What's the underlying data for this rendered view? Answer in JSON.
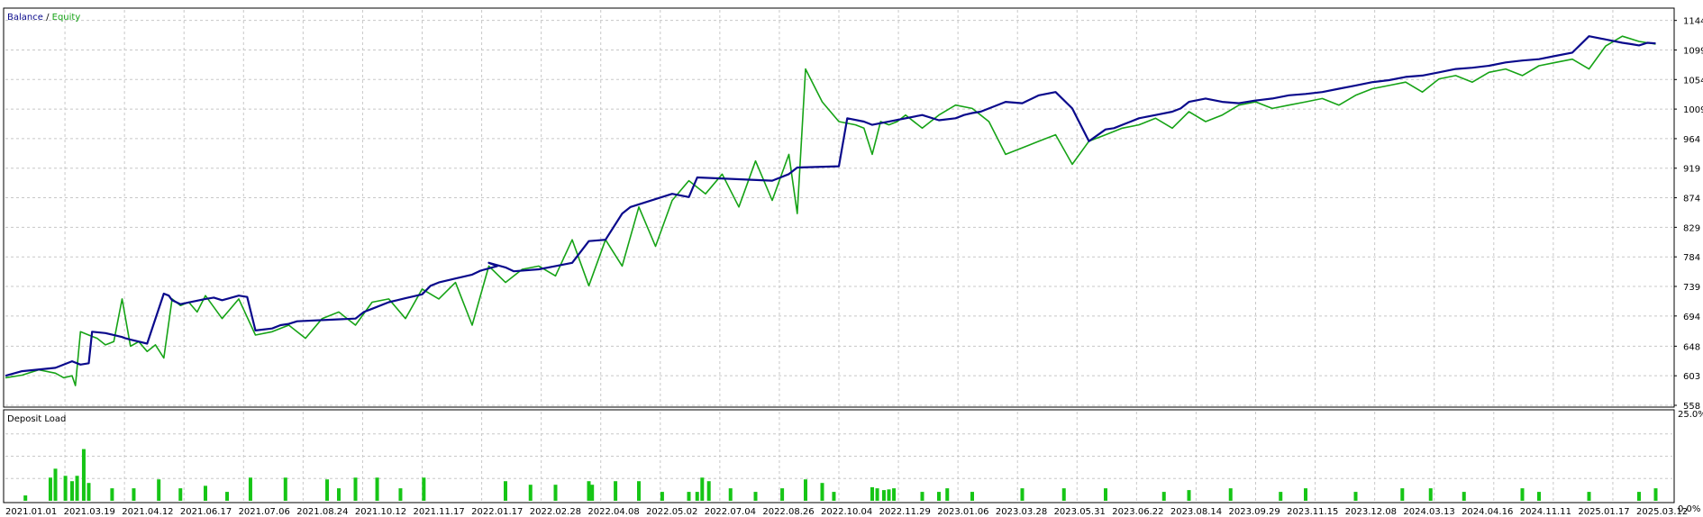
{
  "chart_data": [
    {
      "type": "line",
      "legend": {
        "balance_label": "Balance",
        "separator": " / ",
        "equity_label": "Equity"
      },
      "colors": {
        "balance": "#0a0a8c",
        "equity": "#16a316",
        "grid": "#c8c8c8",
        "frame": "#000000"
      },
      "ylim": [
        558,
        1160
      ],
      "y_ticks": [
        1144,
        1099,
        1054,
        1009,
        964,
        919,
        874,
        829,
        784,
        739,
        694,
        648,
        603,
        558
      ],
      "y_tick_labels": [
        "1144",
        "1099",
        "1054",
        "1009",
        "964",
        "919",
        "874",
        "829",
        "784",
        "739",
        "694",
        "648",
        "603",
        "558"
      ],
      "grid": true,
      "x_range": [
        0,
        1
      ],
      "series": [
        {
          "name": "Balance",
          "x": [
            0,
            0.01,
            0.03,
            0.04,
            0.045,
            0.05,
            0.052,
            0.06,
            0.07,
            0.072,
            0.075,
            0.085,
            0.095,
            0.098,
            0.1,
            0.105,
            0.12,
            0.125,
            0.13,
            0.14,
            0.145,
            0.15,
            0.16,
            0.165,
            0.17,
            0.175,
            0.21,
            0.215,
            0.22,
            0.23,
            0.235,
            0.24,
            0.25,
            0.255,
            0.26,
            0.28,
            0.285,
            0.295,
            0.29,
            0.3,
            0.305,
            0.32,
            0.33,
            0.34,
            0.35,
            0.36,
            0.37,
            0.375,
            0.4,
            0.41,
            0.415,
            0.46,
            0.47,
            0.475,
            0.5,
            0.505,
            0.515,
            0.52,
            0.55,
            0.56,
            0.57,
            0.575,
            0.58,
            0.585,
            0.59,
            0.6,
            0.61,
            0.62,
            0.63,
            0.64,
            0.65,
            0.66,
            0.665,
            0.67,
            0.675,
            0.68,
            0.69,
            0.7,
            0.705,
            0.71,
            0.72,
            0.73,
            0.74,
            0.75,
            0.76,
            0.77,
            0.78,
            0.79,
            0.8,
            0.81,
            0.82,
            0.83,
            0.84,
            0.85,
            0.86,
            0.87,
            0.88,
            0.89,
            0.9,
            0.91,
            0.92,
            0.93,
            0.94,
            0.95,
            0.96,
            0.97,
            0.975,
            0.98,
            0.985,
            0.99
          ],
          "y": [
            603,
            610,
            615,
            625,
            620,
            622,
            670,
            668,
            662,
            660,
            658,
            652,
            728,
            725,
            718,
            712,
            720,
            722,
            718,
            725,
            723,
            672,
            675,
            680,
            682,
            686,
            690,
            700,
            705,
            715,
            718,
            721,
            727,
            740,
            745,
            757,
            763,
            770,
            775,
            768,
            762,
            765,
            770,
            775,
            808,
            810,
            850,
            860,
            880,
            875,
            905,
            900,
            910,
            920,
            922,
            995,
            990,
            985,
            1000,
            992,
            995,
            1000,
            1003,
            1005,
            1010,
            1020,
            1018,
            1030,
            1035,
            1010,
            960,
            978,
            980,
            985,
            990,
            995,
            1000,
            1005,
            1010,
            1020,
            1025,
            1020,
            1018,
            1022,
            1025,
            1030,
            1032,
            1035,
            1040,
            1045,
            1050,
            1053,
            1058,
            1060,
            1065,
            1070,
            1072,
            1075,
            1080,
            1083,
            1085,
            1090,
            1095,
            1120,
            1115,
            1110,
            1108,
            1106,
            1110,
            1109
          ]
        },
        {
          "name": "Equity",
          "x": [
            0,
            0.01,
            0.02,
            0.03,
            0.035,
            0.04,
            0.042,
            0.045,
            0.05,
            0.055,
            0.06,
            0.065,
            0.07,
            0.075,
            0.08,
            0.085,
            0.09,
            0.095,
            0.1,
            0.105,
            0.11,
            0.115,
            0.12,
            0.13,
            0.14,
            0.15,
            0.16,
            0.17,
            0.18,
            0.19,
            0.2,
            0.21,
            0.22,
            0.23,
            0.24,
            0.25,
            0.26,
            0.27,
            0.28,
            0.29,
            0.3,
            0.31,
            0.32,
            0.33,
            0.34,
            0.35,
            0.36,
            0.37,
            0.38,
            0.39,
            0.4,
            0.41,
            0.42,
            0.43,
            0.44,
            0.45,
            0.46,
            0.47,
            0.475,
            0.48,
            0.49,
            0.5,
            0.51,
            0.515,
            0.52,
            0.525,
            0.53,
            0.535,
            0.54,
            0.55,
            0.56,
            0.57,
            0.58,
            0.59,
            0.6,
            0.61,
            0.62,
            0.63,
            0.64,
            0.65,
            0.66,
            0.67,
            0.68,
            0.69,
            0.7,
            0.71,
            0.72,
            0.73,
            0.74,
            0.75,
            0.76,
            0.77,
            0.78,
            0.79,
            0.8,
            0.81,
            0.82,
            0.83,
            0.84,
            0.85,
            0.86,
            0.87,
            0.88,
            0.89,
            0.9,
            0.91,
            0.92,
            0.93,
            0.94,
            0.95,
            0.96,
            0.97,
            0.98,
            0.985,
            0.99
          ],
          "y": [
            600,
            604,
            612,
            607,
            600,
            603,
            588,
            670,
            665,
            660,
            650,
            655,
            720,
            648,
            655,
            640,
            650,
            630,
            720,
            710,
            715,
            700,
            725,
            690,
            720,
            665,
            670,
            680,
            660,
            690,
            700,
            680,
            715,
            720,
            690,
            735,
            720,
            745,
            680,
            770,
            745,
            765,
            770,
            755,
            810,
            740,
            810,
            770,
            860,
            800,
            870,
            900,
            880,
            910,
            860,
            930,
            870,
            940,
            850,
            1070,
            1020,
            990,
            985,
            980,
            940,
            990,
            985,
            990,
            1000,
            980,
            1000,
            1015,
            1010,
            990,
            940,
            950,
            960,
            970,
            925,
            960,
            970,
            980,
            985,
            995,
            980,
            1005,
            990,
            1000,
            1015,
            1020,
            1010,
            1015,
            1020,
            1025,
            1015,
            1030,
            1040,
            1045,
            1050,
            1035,
            1055,
            1060,
            1050,
            1065,
            1070,
            1060,
            1075,
            1080,
            1085,
            1070,
            1105,
            1120,
            1112,
            1110,
            1108
          ]
        }
      ]
    },
    {
      "type": "bar",
      "title": "Deposit Load",
      "ylim": [
        0,
        25
      ],
      "y_tick_labels": [
        "25.0%",
        "0.0%"
      ],
      "color": "#16c516",
      "x_tick_labels": [
        "2021.01.01",
        "2021.03.19",
        "2021.04.12",
        "2021.06.17",
        "2021.07.06",
        "2021.08.24",
        "2021.10.12",
        "2021.11.17",
        "2022.01.17",
        "2022.02.28",
        "2022.04.08",
        "2022.05.02",
        "2022.07.04",
        "2022.08.26",
        "2022.10.04",
        "2022.11.29",
        "2023.01.06",
        "2023.03.28",
        "2023.05.31",
        "2023.06.22",
        "2023.08.14",
        "2023.09.29",
        "2023.11.15",
        "2023.12.08",
        "2024.03.13",
        "2024.04.16",
        "2024.11.11",
        "2025.01.17",
        "2025.03.12"
      ],
      "x": [
        0.012,
        0.027,
        0.03,
        0.036,
        0.04,
        0.043,
        0.047,
        0.05,
        0.064,
        0.077,
        0.092,
        0.105,
        0.12,
        0.133,
        0.147,
        0.168,
        0.193,
        0.2,
        0.21,
        0.223,
        0.237,
        0.251,
        0.3,
        0.315,
        0.33,
        0.35,
        0.352,
        0.366,
        0.38,
        0.394,
        0.41,
        0.415,
        0.418,
        0.422,
        0.435,
        0.45,
        0.466,
        0.48,
        0.49,
        0.497,
        0.52,
        0.523,
        0.527,
        0.53,
        0.533,
        0.55,
        0.56,
        0.565,
        0.58,
        0.61,
        0.635,
        0.66,
        0.695,
        0.71,
        0.735,
        0.765,
        0.78,
        0.81,
        0.838,
        0.855,
        0.875,
        0.91,
        0.92,
        0.95,
        0.98,
        0.99
      ],
      "values": [
        1.5,
        6.5,
        9,
        7,
        5.5,
        7,
        14.5,
        5,
        3.5,
        3.5,
        6,
        3.5,
        4.2,
        2.5,
        6.5,
        6.5,
        6,
        3.5,
        6.5,
        6.5,
        3.5,
        6.5,
        5.5,
        4.5,
        4.5,
        5.5,
        4.5,
        5.5,
        5.5,
        2.5,
        2.5,
        2.5,
        6.5,
        5.5,
        3.5,
        2.5,
        3.5,
        6,
        5,
        2.5,
        3.8,
        3.5,
        3,
        3.2,
        3.5,
        2.5,
        2.5,
        3.5,
        2.5,
        3.5,
        3.5,
        3.5,
        2.5,
        3,
        3.5,
        2.5,
        3.5,
        2.5,
        3.5,
        3.5,
        2.5,
        3.5,
        2.5,
        2.5,
        2.5,
        3.5
      ]
    }
  ]
}
